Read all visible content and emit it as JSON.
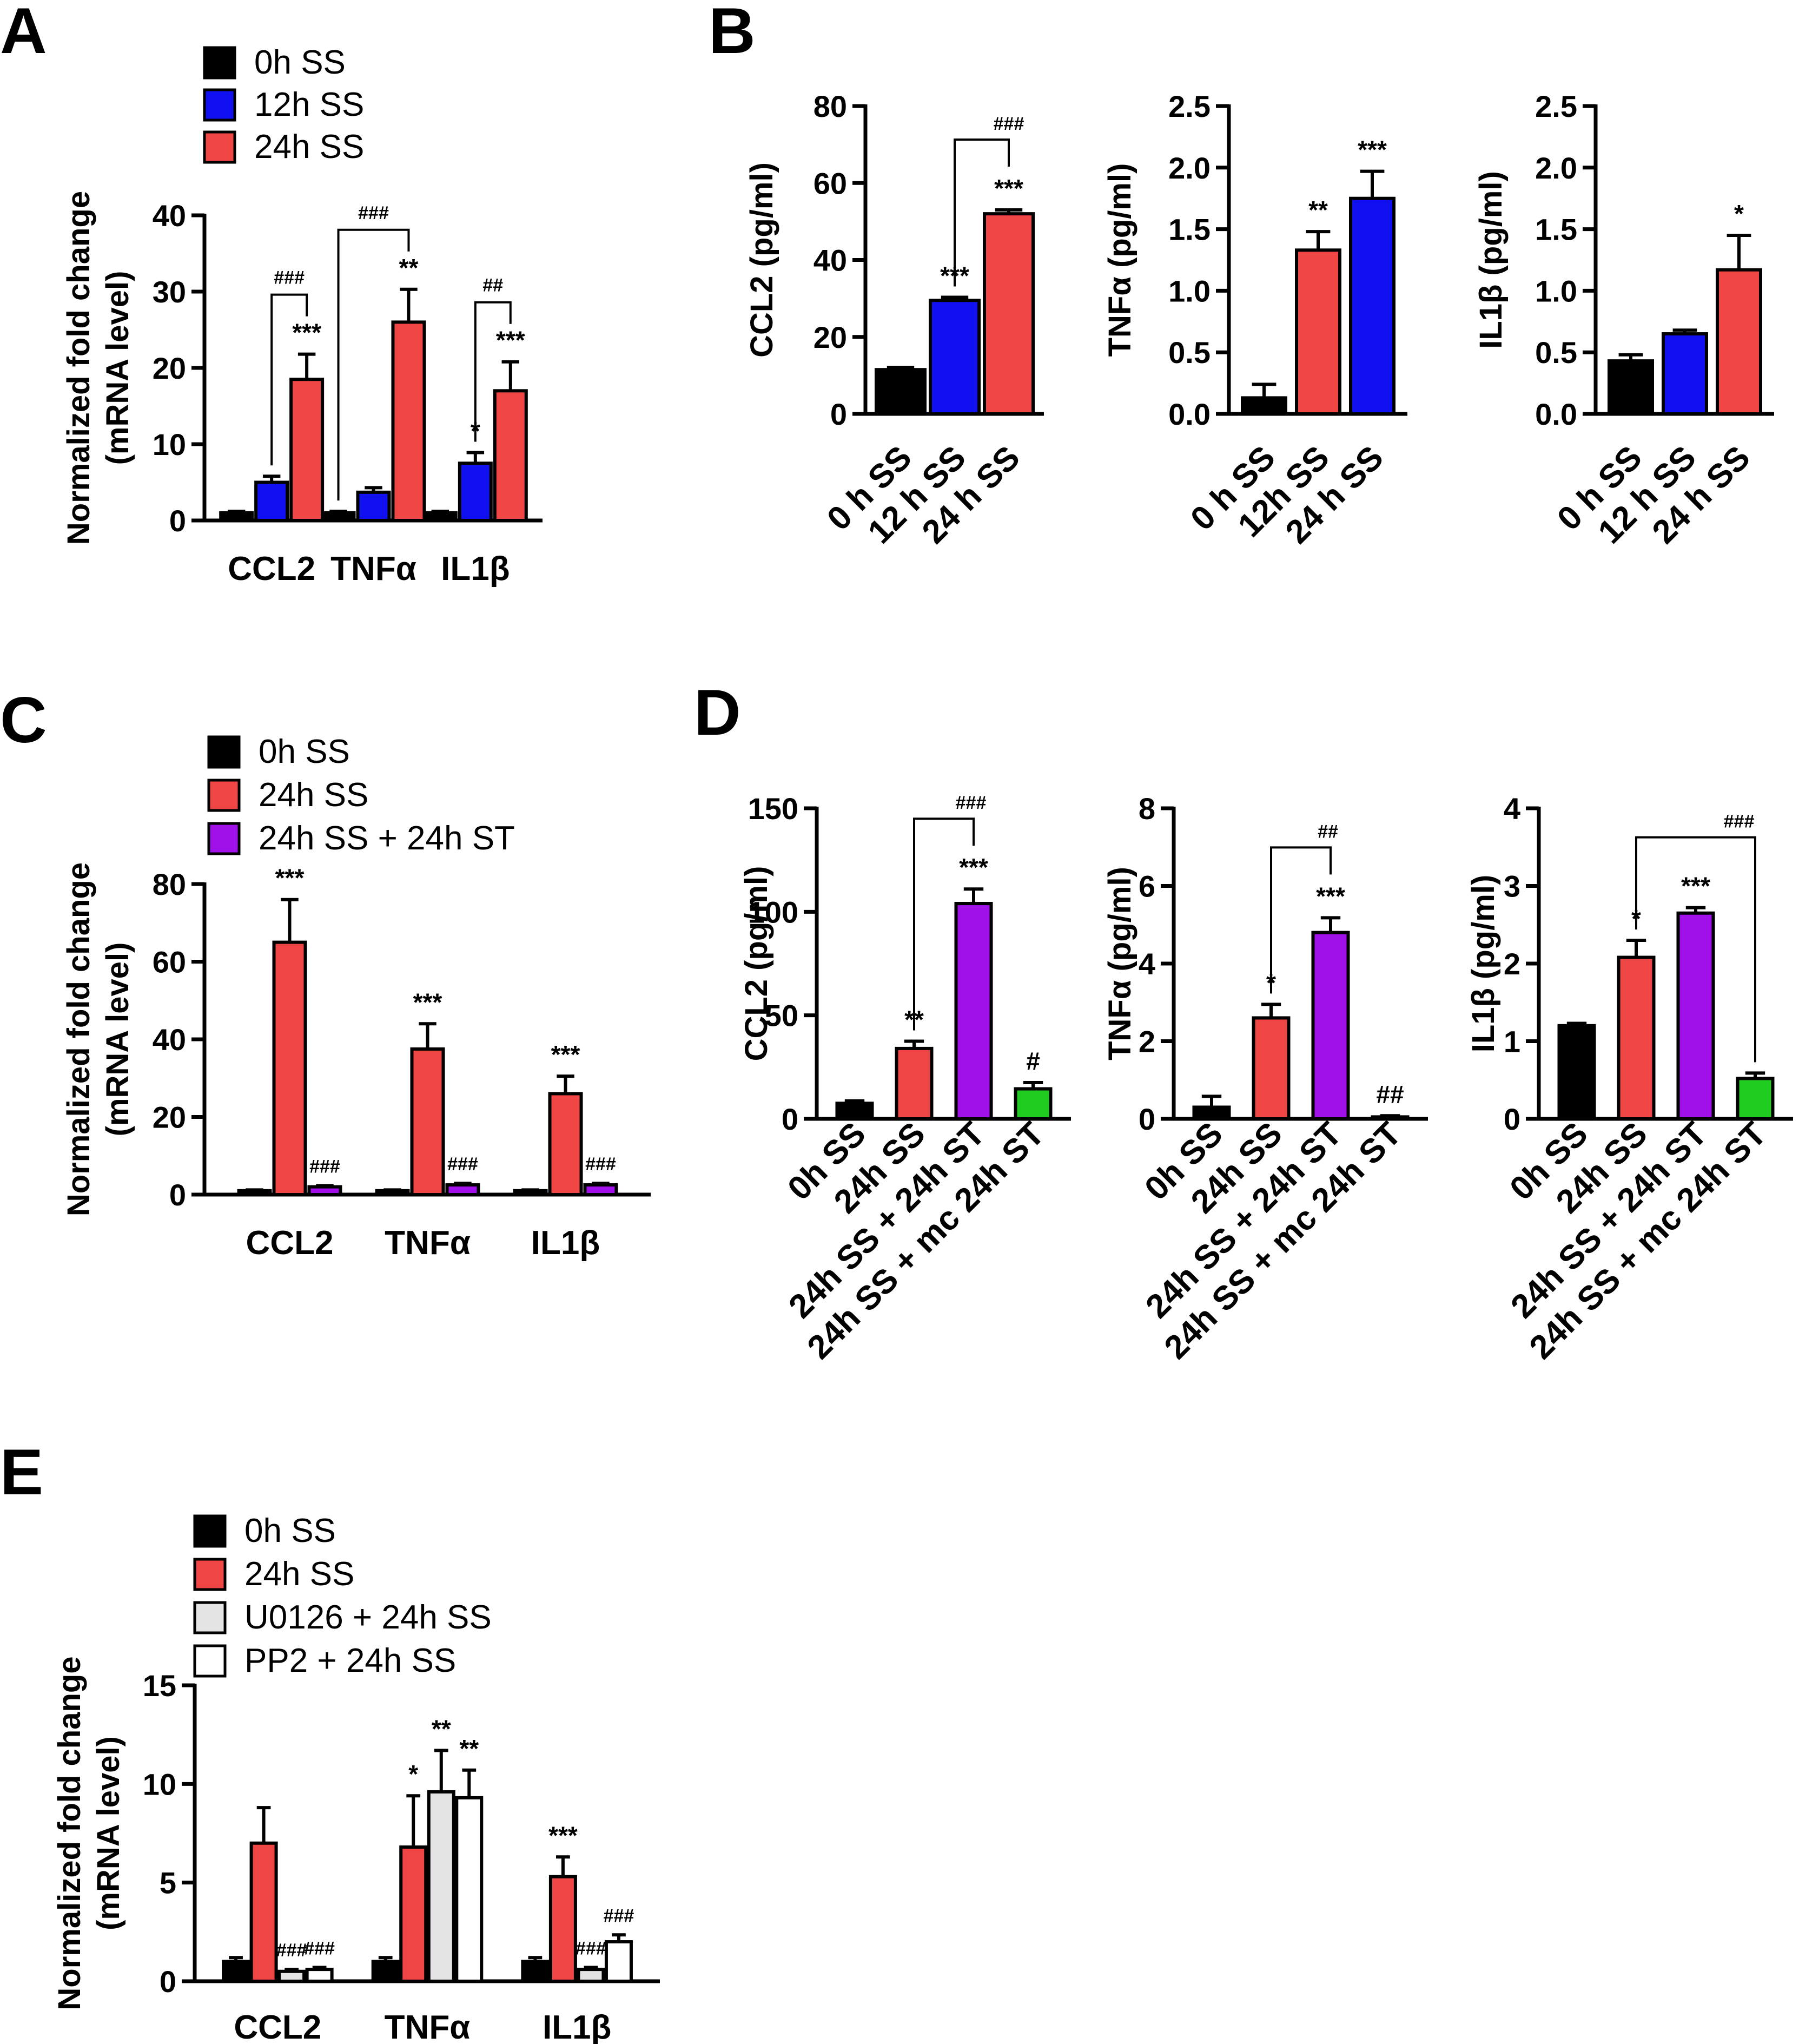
{
  "colors": {
    "0h SS": "#000000",
    "12h SS": "#1010f0",
    "24h SS": "#f04545",
    "24h SS + 24h ST": "#a010e8",
    "24h SS + mc 24h ST": "#20cc20",
    "U0126 + 24h SS": "#e4e4e4",
    "PP2 + 24h SS": "#ffffff"
  },
  "chart_data": [
    {
      "panel": "A",
      "type": "bar",
      "ylabel": [
        "Normalized fold change",
        "(mRNA level)"
      ],
      "ylim": [
        0,
        40
      ],
      "yticks": [
        "0",
        "10",
        "20",
        "30",
        "40"
      ],
      "categories": [
        "CCL2",
        "TNFα",
        "IL1β"
      ],
      "legend": [
        "0h SS",
        "12h SS",
        "24h SS"
      ],
      "series": [
        {
          "name": "0h SS",
          "values": [
            1,
            1,
            1
          ],
          "errors": [
            0.2,
            0.2,
            0.2
          ],
          "sig": [
            "",
            "",
            ""
          ]
        },
        {
          "name": "12h SS",
          "values": [
            5,
            3.7,
            7.5
          ],
          "errors": [
            0.8,
            0.6,
            1.4
          ],
          "sig": [
            "",
            "",
            "*"
          ]
        },
        {
          "name": "24h SS",
          "values": [
            18.5,
            26,
            17
          ],
          "errors": [
            3.3,
            4.3,
            3.8
          ],
          "sig": [
            "***",
            "**",
            "***"
          ]
        }
      ],
      "brackets": [
        {
          "category": 0,
          "from": 1,
          "to": 2,
          "label": "###"
        },
        {
          "category": 1,
          "from": 0,
          "to": 2,
          "label": "###"
        },
        {
          "category": 2,
          "from": 1,
          "to": 2,
          "label": "##"
        }
      ]
    },
    {
      "panel": "B",
      "type": "bar",
      "ylabel": "CCL2 (pg/ml)",
      "ylim": [
        0,
        80
      ],
      "yticks": [
        "0",
        "20",
        "40",
        "60",
        "80"
      ],
      "categories": [
        "0 h SS",
        "12 h SS",
        "24 h SS"
      ],
      "colors": [
        "0h SS",
        "12h SS",
        "24h SS"
      ],
      "values": [
        11.5,
        29.5,
        52
      ],
      "errors": [
        0.6,
        0.8,
        1.0
      ],
      "sig": [
        "",
        "***",
        "***"
      ],
      "brackets": [
        {
          "from": 1,
          "to": 2,
          "label": "###"
        }
      ]
    },
    {
      "panel": "B",
      "type": "bar",
      "ylabel": "TNFα  (pg/ml)",
      "ylim": [
        0,
        2.5
      ],
      "yticks": [
        "0.0",
        "0.5",
        "1.0",
        "1.5",
        "2.0",
        "2.5"
      ],
      "categories": [
        "0 h SS",
        "12h SS",
        "24 h SS"
      ],
      "colors": [
        "0h SS",
        "24h SS",
        "12h SS"
      ],
      "values": [
        0.13,
        1.33,
        1.75
      ],
      "errors": [
        0.11,
        0.15,
        0.22
      ],
      "sig": [
        "",
        "**",
        "***"
      ],
      "brackets": []
    },
    {
      "panel": "B",
      "type": "bar",
      "ylabel": "IL1β  (pg/ml)",
      "ylim": [
        0,
        2.5
      ],
      "yticks": [
        "0.0",
        "0.5",
        "1.0",
        "1.5",
        "2.0",
        "2.5"
      ],
      "categories": [
        "0 h SS",
        "12 h SS",
        "24 h SS"
      ],
      "colors": [
        "0h SS",
        "12h SS",
        "24h SS"
      ],
      "values": [
        0.43,
        0.65,
        1.17
      ],
      "errors": [
        0.05,
        0.03,
        0.28
      ],
      "sig": [
        "",
        "",
        "*"
      ],
      "brackets": []
    },
    {
      "panel": "C",
      "type": "bar",
      "ylabel": [
        "Normalized fold change",
        "(mRNA level)"
      ],
      "ylim": [
        0,
        80
      ],
      "yticks": [
        "0",
        "20",
        "40",
        "60",
        "80"
      ],
      "categories": [
        "CCL2",
        "TNFα",
        "IL1β"
      ],
      "legend": [
        "0h SS",
        "24h SS",
        "24h SS + 24h ST"
      ],
      "series": [
        {
          "name": "0h SS",
          "values": [
            1,
            1,
            1
          ],
          "errors": [
            0.2,
            0.2,
            0.2
          ],
          "sig": [
            "",
            "",
            ""
          ]
        },
        {
          "name": "24h SS",
          "values": [
            65,
            37.5,
            26
          ],
          "errors": [
            11,
            6.5,
            4.5
          ],
          "sig": [
            "***",
            "***",
            "***"
          ]
        },
        {
          "name": "24h SS + 24h ST",
          "values": [
            2,
            2.5,
            2.5
          ],
          "errors": [
            0.3,
            0.4,
            0.4
          ],
          "sig": [
            "###",
            "###",
            "###"
          ]
        }
      ],
      "brackets": []
    },
    {
      "panel": "D",
      "type": "bar",
      "ylabel": "CCL2 (pg/ml)",
      "ylim": [
        0,
        150
      ],
      "yticks": [
        "0",
        "50",
        "100",
        "150"
      ],
      "categories": [
        "0h SS",
        "24h SS",
        "24h SS + 24h ST",
        "24h SS + mc 24h ST"
      ],
      "colors": [
        "0h SS",
        "24h SS",
        "24h SS + 24h ST",
        "24h SS + mc 24h ST"
      ],
      "values": [
        7.5,
        34,
        104,
        14.5
      ],
      "errors": [
        1.2,
        3.5,
        7,
        3
      ],
      "sig": [
        "",
        "**",
        "***",
        "#"
      ],
      "brackets": [
        {
          "from": 1,
          "to": 2,
          "label": "###"
        }
      ]
    },
    {
      "panel": "D",
      "type": "bar",
      "ylabel": "TNFα (pg/ml)",
      "ylim": [
        0,
        8
      ],
      "yticks": [
        "0",
        "2",
        "4",
        "6",
        "8"
      ],
      "categories": [
        "0h SS",
        "24h SS",
        "24h SS + 24h ST",
        "24h SS + mc 24h ST"
      ],
      "colors": [
        "0h SS",
        "24h SS",
        "24h SS + 24h ST",
        "24h SS + mc 24h ST"
      ],
      "values": [
        0.3,
        2.6,
        4.8,
        0.05
      ],
      "errors": [
        0.28,
        0.35,
        0.38,
        0.03
      ],
      "sig": [
        "",
        "*",
        "***",
        "##"
      ],
      "brackets": [
        {
          "from": 1,
          "to": 2,
          "label": "##"
        }
      ]
    },
    {
      "panel": "D",
      "type": "bar",
      "ylabel": "IL1β (pg/ml)",
      "ylim": [
        0,
        4
      ],
      "yticks": [
        "0",
        "1",
        "2",
        "3",
        "4"
      ],
      "categories": [
        "0h SS",
        "24h SS",
        "24h SS + 24h ST",
        "24h SS + mc 24h ST"
      ],
      "colors": [
        "0h SS",
        "24h SS",
        "24h SS + 24h ST",
        "24h SS + mc 24h ST"
      ],
      "values": [
        1.2,
        2.08,
        2.65,
        0.52
      ],
      "errors": [
        0.03,
        0.22,
        0.07,
        0.07
      ],
      "sig": [
        "",
        "*",
        "***",
        ""
      ],
      "brackets": [
        {
          "from": 1,
          "to": 3,
          "label": "###"
        }
      ]
    },
    {
      "panel": "E",
      "type": "bar",
      "ylabel": [
        "Normalized fold change",
        "(mRNA level)"
      ],
      "ylim": [
        0,
        15
      ],
      "yticks": [
        "0",
        "5",
        "10",
        "15"
      ],
      "categories": [
        "CCL2",
        "TNFα",
        "IL1β"
      ],
      "legend": [
        "0h SS",
        "24h SS",
        "U0126 + 24h SS",
        "PP2 + 24h SS"
      ],
      "series": [
        {
          "name": "0h SS",
          "values": [
            1,
            1,
            1
          ],
          "errors": [
            0.2,
            0.2,
            0.2
          ],
          "sig": [
            "",
            "",
            ""
          ]
        },
        {
          "name": "24h SS",
          "values": [
            7,
            6.8,
            5.3
          ],
          "errors": [
            1.8,
            2.6,
            1.0
          ],
          "sig": [
            "",
            "*",
            "***"
          ]
        },
        {
          "name": "U0126 + 24h SS",
          "values": [
            0.5,
            9.6,
            0.6
          ],
          "errors": [
            0.1,
            2.1,
            0.1
          ],
          "sig": [
            "###",
            "**",
            "###"
          ]
        },
        {
          "name": "PP2 + 24h SS",
          "values": [
            0.6,
            9.3,
            2
          ],
          "errors": [
            0.1,
            1.4,
            0.35
          ],
          "sig": [
            "###",
            "**",
            "###"
          ]
        }
      ],
      "brackets": []
    }
  ]
}
